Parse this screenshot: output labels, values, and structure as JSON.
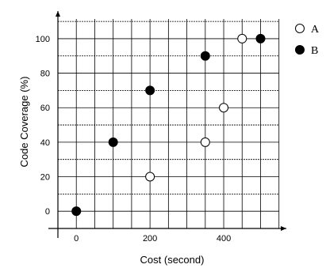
{
  "chart_data": {
    "type": "scatter",
    "xlabel": "Cost (second)",
    "ylabel": "Code Coverage (%)",
    "xlim": [
      -50,
      570
    ],
    "ylim": [
      -10,
      116
    ],
    "x_ticks": [
      0,
      200,
      400
    ],
    "y_ticks": [
      0,
      20,
      40,
      60,
      80,
      100
    ],
    "grid": true,
    "legend_position": "top-right",
    "series": [
      {
        "name": "A",
        "marker": "open-circle",
        "color": "#000000",
        "points": [
          [
            200,
            20
          ],
          [
            350,
            40
          ],
          [
            400,
            60
          ],
          [
            450,
            100
          ]
        ]
      },
      {
        "name": "B",
        "marker": "filled-circle",
        "color": "#000000",
        "points": [
          [
            0,
            0
          ],
          [
            100,
            40
          ],
          [
            200,
            70
          ],
          [
            350,
            90
          ],
          [
            500,
            100
          ]
        ]
      }
    ]
  }
}
